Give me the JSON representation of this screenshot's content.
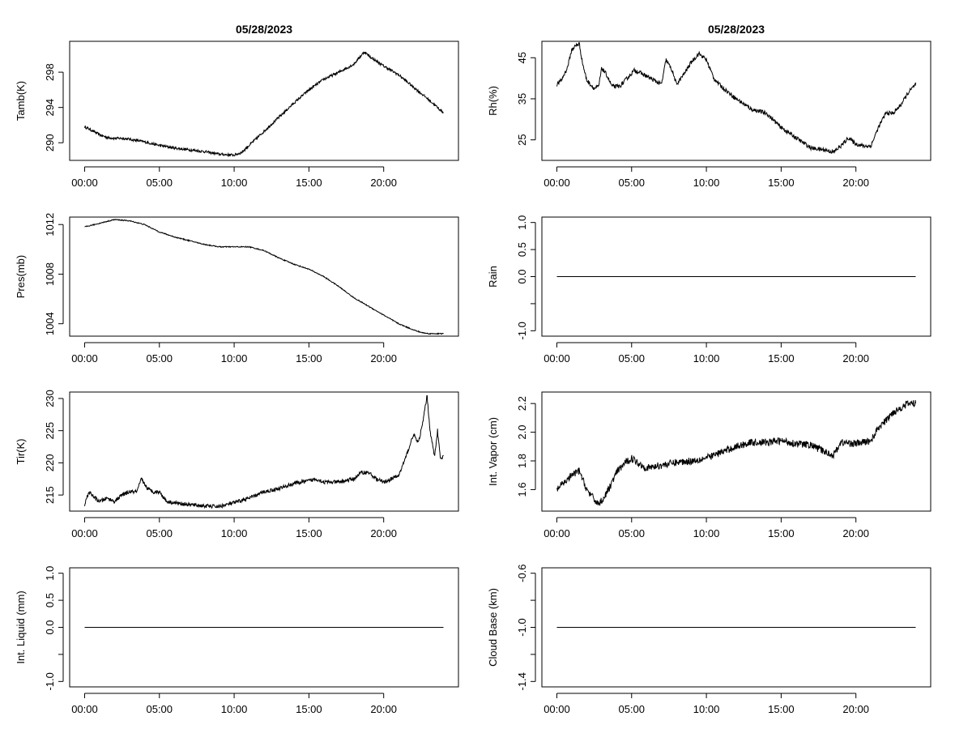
{
  "chart_data": [
    {
      "type": "line",
      "title": "05/28/2023",
      "ylabel": "Tamb(K)",
      "xlim": [
        -1,
        25
      ],
      "ylim": [
        288,
        301.5
      ],
      "x_ticks": [
        0,
        5,
        10,
        15,
        20
      ],
      "x_tick_labels": [
        "00:00",
        "05:00",
        "10:00",
        "15:00",
        "20:00"
      ],
      "y_ticks": [
        290,
        294,
        298
      ],
      "y_tick_labels": [
        "290",
        "294",
        "298"
      ],
      "noise": 0.15,
      "x": [
        0,
        0.5,
        1,
        1.5,
        2,
        2.5,
        3,
        4,
        5,
        6,
        7,
        8,
        9,
        10,
        10.5,
        11,
        12,
        13,
        14,
        15,
        16,
        17,
        18,
        18.7,
        19.2,
        20,
        21,
        22,
        23,
        24
      ],
      "y": [
        291.8,
        291.4,
        290.9,
        290.6,
        290.5,
        290.5,
        290.4,
        290.1,
        289.7,
        289.4,
        289.2,
        289.0,
        288.7,
        288.6,
        288.9,
        289.7,
        291.3,
        292.9,
        294.5,
        296.0,
        297.2,
        298.0,
        298.9,
        300.3,
        299.6,
        298.7,
        297.7,
        296.3,
        294.9,
        293.4
      ]
    },
    {
      "type": "line",
      "title": "05/28/2023",
      "ylabel": "Rh(%)",
      "xlim": [
        -1,
        25
      ],
      "ylim": [
        20,
        49
      ],
      "x_ticks": [
        0,
        5,
        10,
        15,
        20
      ],
      "x_tick_labels": [
        "00:00",
        "05:00",
        "10:00",
        "15:00",
        "20:00"
      ],
      "y_ticks": [
        25,
        35,
        45
      ],
      "y_tick_labels": [
        "25",
        "35",
        "45"
      ],
      "noise": 0.5,
      "x": [
        0,
        0.3,
        0.7,
        1.0,
        1.3,
        1.5,
        1.7,
        2.0,
        2.5,
        2.8,
        3.0,
        3.3,
        3.7,
        4.2,
        4.7,
        5.2,
        5.5,
        6.0,
        6.5,
        7.0,
        7.3,
        7.7,
        8.0,
        8.5,
        9.0,
        9.5,
        10.0,
        10.5,
        11,
        12,
        13,
        14,
        15,
        16,
        17,
        18,
        18.5,
        19,
        19.5,
        20,
        20.5,
        21,
        21.5,
        22,
        22.5,
        23,
        23.5,
        24
      ],
      "y": [
        38.5,
        39.5,
        42.5,
        47,
        48,
        48.5,
        44,
        39.5,
        37.5,
        38,
        42.5,
        41,
        38,
        38,
        40,
        42,
        41.5,
        40.5,
        39.5,
        38.5,
        44.5,
        42,
        38.5,
        41,
        44,
        46,
        44.5,
        40,
        38,
        35,
        32.5,
        31.5,
        28,
        25.5,
        23.0,
        22.5,
        22,
        23.5,
        25.5,
        24,
        23.5,
        23.5,
        28,
        31.5,
        31.5,
        33.5,
        36.5,
        38.5
      ]
    },
    {
      "type": "line",
      "title": "",
      "ylabel": "Pres(mb)",
      "xlim": [
        -1,
        25
      ],
      "ylim": [
        1003,
        1012.6
      ],
      "x_ticks": [
        0,
        5,
        10,
        15,
        20
      ],
      "x_tick_labels": [
        "00:00",
        "05:00",
        "10:00",
        "15:00",
        "20:00"
      ],
      "y_ticks": [
        1004,
        1008,
        1012
      ],
      "y_tick_labels": [
        "1004",
        "1008",
        "1012"
      ],
      "noise": 0.04,
      "x": [
        0,
        1,
        2,
        3,
        4,
        5,
        6,
        7,
        8,
        9,
        10,
        11,
        12,
        13,
        14,
        15,
        16,
        17,
        18,
        19,
        20,
        21,
        22,
        22.5,
        23,
        24
      ],
      "y": [
        1011.8,
        1012.1,
        1012.4,
        1012.3,
        1012.0,
        1011.4,
        1011.0,
        1010.7,
        1010.4,
        1010.2,
        1010.2,
        1010.2,
        1009.9,
        1009.3,
        1008.8,
        1008.4,
        1007.8,
        1007.0,
        1006.1,
        1005.4,
        1004.7,
        1004.0,
        1003.5,
        1003.3,
        1003.2,
        1003.2
      ]
    },
    {
      "type": "line",
      "title": "",
      "ylabel": "Rain",
      "xlim": [
        -1,
        25
      ],
      "ylim": [
        -1.1,
        1.1
      ],
      "x_ticks": [
        0,
        5,
        10,
        15,
        20
      ],
      "x_tick_labels": [
        "00:00",
        "05:00",
        "10:00",
        "15:00",
        "20:00"
      ],
      "y_ticks": [
        -1.0,
        -0.5,
        0.0,
        0.5,
        1.0
      ],
      "y_tick_labels": [
        "-1.0",
        "",
        "0.0",
        "0.5",
        "1.0"
      ],
      "noise": 0,
      "x": [
        0,
        24
      ],
      "y": [
        0,
        0
      ]
    },
    {
      "type": "line",
      "title": "",
      "ylabel": "Tir(K)",
      "xlim": [
        -1,
        25
      ],
      "ylim": [
        212.5,
        231
      ],
      "x_ticks": [
        0,
        5,
        10,
        15,
        20
      ],
      "x_tick_labels": [
        "00:00",
        "05:00",
        "10:00",
        "15:00",
        "20:00"
      ],
      "y_ticks": [
        215,
        220,
        225,
        230
      ],
      "y_tick_labels": [
        "215",
        "220",
        "225",
        "230"
      ],
      "noise": 0.3,
      "x": [
        0,
        0.3,
        0.7,
        1,
        1.5,
        2,
        2.5,
        3,
        3.5,
        3.8,
        4.2,
        4.6,
        5,
        5.5,
        6,
        7,
        8,
        9,
        10,
        11,
        12,
        13,
        14,
        15,
        15.5,
        16,
        17,
        18,
        18.5,
        19,
        19.5,
        20,
        21,
        21.5,
        22,
        22.3,
        22.6,
        22.9,
        23.1,
        23.4,
        23.6,
        23.8,
        24
      ],
      "y": [
        213.5,
        215.5,
        214.5,
        214,
        214.5,
        214,
        215,
        215.5,
        215.5,
        217.5,
        216,
        215.5,
        215.5,
        214,
        213.8,
        213.5,
        213.3,
        213.2,
        213.8,
        214.5,
        215.5,
        216,
        216.8,
        217.2,
        217.5,
        217,
        217,
        217.5,
        218.5,
        218.5,
        217.5,
        217,
        218,
        221,
        224.5,
        223,
        226,
        230.5,
        225,
        221,
        225,
        220.5,
        221
      ]
    },
    {
      "type": "line",
      "title": "",
      "ylabel": "Int. Vapor (cm)",
      "xlim": [
        -1,
        25
      ],
      "ylim": [
        1.45,
        2.28
      ],
      "x_ticks": [
        0,
        5,
        10,
        15,
        20
      ],
      "x_tick_labels": [
        "00:00",
        "05:00",
        "10:00",
        "15:00",
        "20:00"
      ],
      "y_ticks": [
        1.6,
        1.8,
        2.0,
        2.2
      ],
      "y_tick_labels": [
        "1.6",
        "1.8",
        "2.0",
        "2.2"
      ],
      "noise": 0.025,
      "x": [
        0,
        0.5,
        1,
        1.5,
        2,
        2.5,
        2.8,
        3.2,
        3.6,
        4,
        4.5,
        5,
        5.5,
        6,
        7,
        8,
        9,
        10,
        11,
        12,
        13,
        14,
        15,
        16,
        17,
        18,
        18.5,
        19,
        20,
        21,
        21.5,
        22,
        22.5,
        23,
        23.5,
        24
      ],
      "y": [
        1.6,
        1.65,
        1.7,
        1.73,
        1.6,
        1.53,
        1.5,
        1.55,
        1.63,
        1.72,
        1.78,
        1.82,
        1.78,
        1.75,
        1.77,
        1.79,
        1.8,
        1.82,
        1.86,
        1.9,
        1.93,
        1.93,
        1.94,
        1.92,
        1.91,
        1.86,
        1.84,
        1.93,
        1.92,
        1.94,
        2.03,
        2.08,
        2.14,
        2.17,
        2.2,
        2.2
      ]
    },
    {
      "type": "line",
      "title": "",
      "ylabel": "Int. Liquid (mm)",
      "xlim": [
        -1,
        25
      ],
      "ylim": [
        -1.1,
        1.1
      ],
      "x_ticks": [
        0,
        5,
        10,
        15,
        20
      ],
      "x_tick_labels": [
        "00:00",
        "05:00",
        "10:00",
        "15:00",
        "20:00"
      ],
      "y_ticks": [
        -1.0,
        -0.5,
        0.0,
        0.5,
        1.0
      ],
      "y_tick_labels": [
        "-1.0",
        "",
        "0.0",
        "0.5",
        "1.0"
      ],
      "noise": 0,
      "x": [
        0,
        24
      ],
      "y": [
        0,
        0
      ]
    },
    {
      "type": "line",
      "title": "",
      "ylabel": "Cloud Base (km)",
      "xlim": [
        -1,
        25
      ],
      "ylim": [
        -1.44,
        -0.56
      ],
      "x_ticks": [
        0,
        5,
        10,
        15,
        20
      ],
      "x_tick_labels": [
        "00:00",
        "05:00",
        "10:00",
        "15:00",
        "20:00"
      ],
      "y_ticks": [
        -1.4,
        -1.2,
        -1.0,
        -0.8,
        -0.6
      ],
      "y_tick_labels": [
        "-1.4",
        "",
        "-1.0",
        "",
        "-0.6"
      ],
      "noise": 0,
      "x": [
        0,
        24
      ],
      "y": [
        -1.0,
        -1.0
      ]
    }
  ]
}
